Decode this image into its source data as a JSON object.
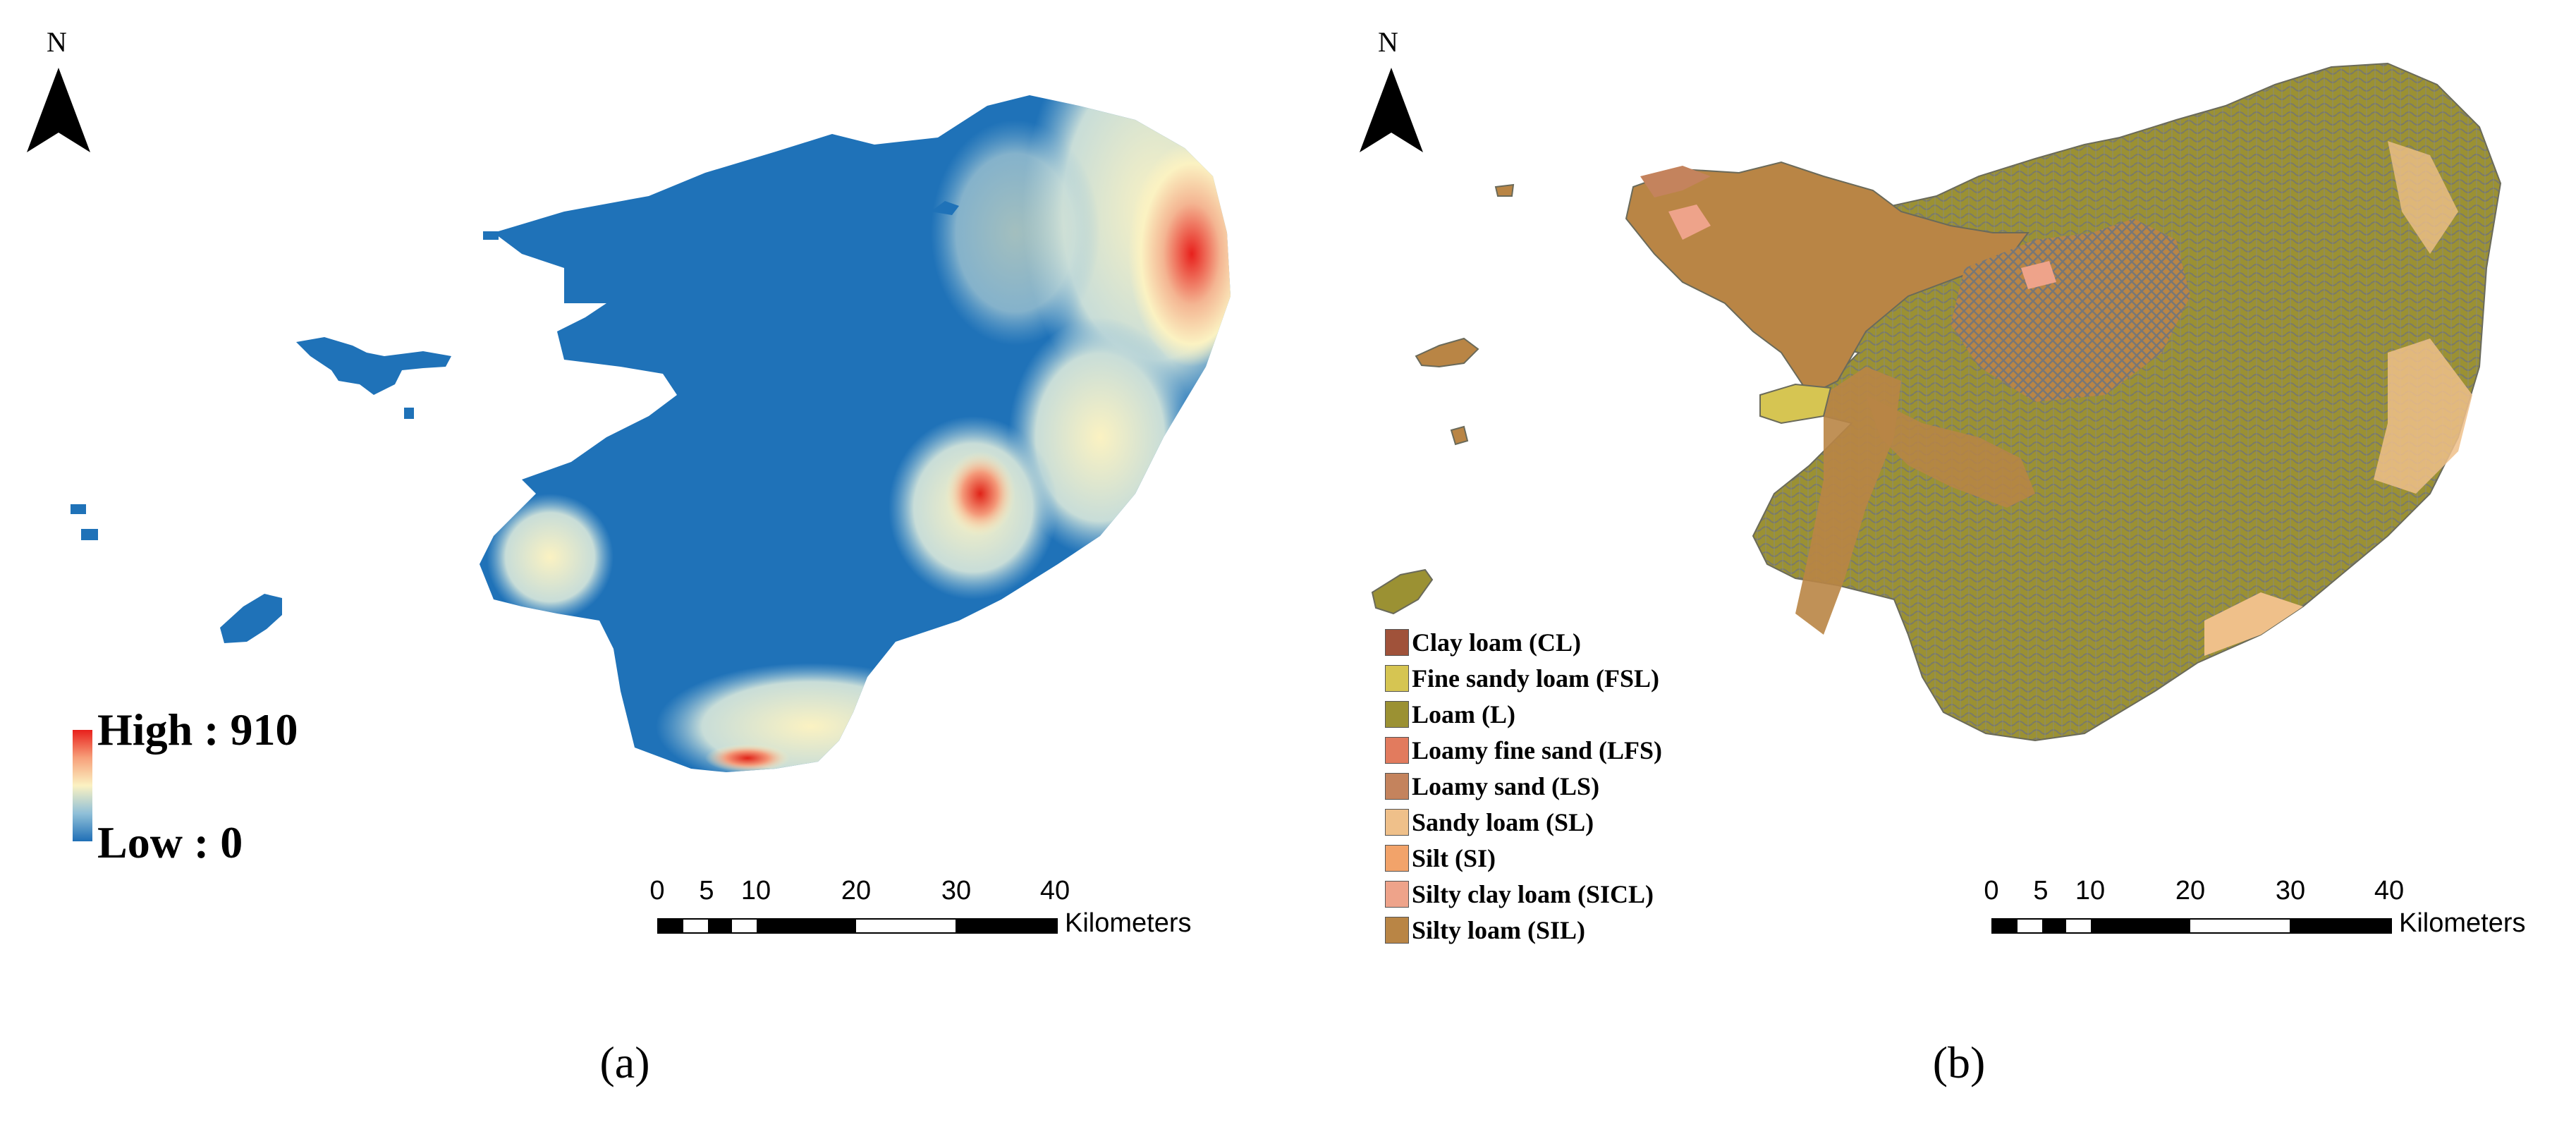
{
  "panels": [
    {
      "caption": "(a)",
      "north": "N",
      "legend": {
        "high": "High : 910",
        "low": "Low : 0",
        "high_value": 910,
        "low_value": 0,
        "colors": [
          "#e8201c",
          "#fbf2c2",
          "#1f6fb6"
        ]
      },
      "scale": {
        "ticks": [
          "0",
          "5",
          "10",
          "20",
          "30",
          "40"
        ],
        "unit": "Kilometers"
      }
    },
    {
      "caption": "(b)",
      "north": "N",
      "legend_items": [
        {
          "label": "Clay loam (CL)",
          "color": "#a0523a"
        },
        {
          "label": "Fine sandy loam (FSL)",
          "color": "#d6c552"
        },
        {
          "label": "Loam (L)",
          "color": "#9b9133"
        },
        {
          "label": "Loamy fine sand (LFS)",
          "color": "#e27b5e"
        },
        {
          "label": "Loamy sand (LS)",
          "color": "#c4835d"
        },
        {
          "label": "Sandy loam (SL)",
          "color": "#efc08a"
        },
        {
          "label": "Silt (SI)",
          "color": "#f2a36a"
        },
        {
          "label": "Silty clay loam (SICL)",
          "color": "#eea38a"
        },
        {
          "label": "Silty loam (SIL)",
          "color": "#b98545"
        }
      ],
      "scale": {
        "ticks": [
          "0",
          "5",
          "10",
          "20",
          "30",
          "40"
        ],
        "unit": "Kilometers"
      }
    }
  ]
}
